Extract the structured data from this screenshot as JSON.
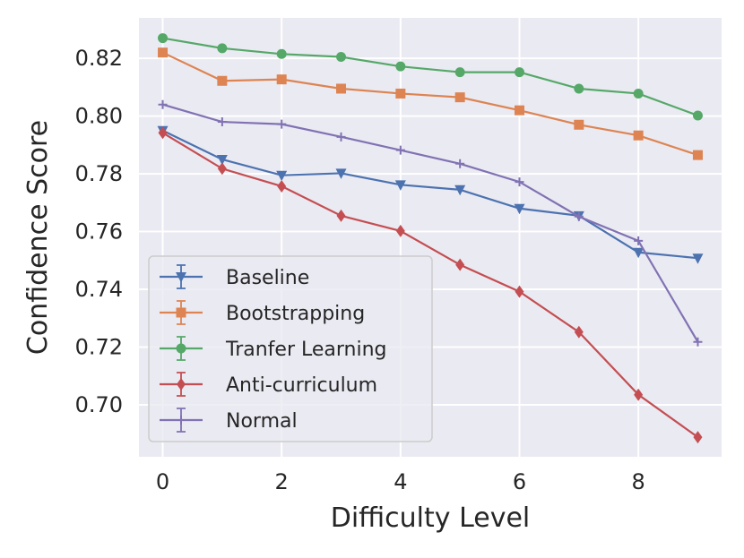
{
  "chart_data": {
    "type": "line",
    "title": "",
    "xlabel": "Difficulty Level",
    "ylabel": "Confidence Score",
    "xlim": [
      -0.4,
      9.4
    ],
    "ylim": [
      0.682,
      0.834
    ],
    "xticks": [
      0,
      2,
      4,
      6,
      8
    ],
    "yticks": [
      0.7,
      0.72,
      0.74,
      0.76,
      0.78,
      0.8,
      0.82
    ],
    "grid": true,
    "legend_position": "lower-left",
    "x": [
      0,
      1,
      2,
      3,
      4,
      5,
      6,
      7,
      8,
      9
    ],
    "series": [
      {
        "name": "Baseline",
        "color": "#4c72b0",
        "marker": "triangle-down",
        "values": [
          0.795,
          0.785,
          0.7795,
          0.7802,
          0.7762,
          0.7745,
          0.768,
          0.7655,
          0.7528,
          0.7508
        ]
      },
      {
        "name": "Bootstrapping",
        "color": "#dd8452",
        "marker": "square",
        "values": [
          0.822,
          0.8122,
          0.8127,
          0.8095,
          0.8078,
          0.8065,
          0.802,
          0.797,
          0.7933,
          0.7865
        ]
      },
      {
        "name": "Tranfer Learning",
        "color": "#55a868",
        "marker": "circle",
        "values": [
          0.827,
          0.8235,
          0.8215,
          0.8205,
          0.8172,
          0.8152,
          0.8152,
          0.8095,
          0.8078,
          0.8002
        ]
      },
      {
        "name": "Anti-curriculum",
        "color": "#c44e52",
        "marker": "diamond",
        "values": [
          0.7942,
          0.7818,
          0.7757,
          0.7655,
          0.7602,
          0.7485,
          0.7392,
          0.7252,
          0.7035,
          0.6888
        ]
      },
      {
        "name": "Normal",
        "color": "#8172b3",
        "marker": "plus",
        "values": [
          0.804,
          0.798,
          0.7972,
          0.7928,
          0.7882,
          0.7835,
          0.7772,
          0.7652,
          0.7568,
          0.7218
        ]
      }
    ]
  }
}
